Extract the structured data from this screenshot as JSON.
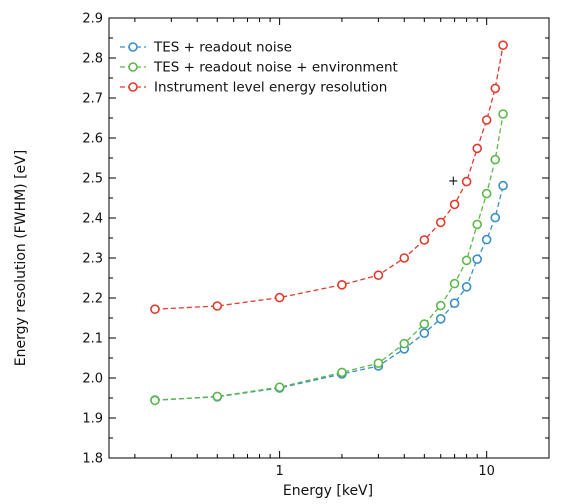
{
  "chart_data": {
    "type": "line",
    "xlabel": "Energy [keV]",
    "ylabel": "Energy resolution (FWHM) [eV]",
    "xscale": "log",
    "xlim": [
      0.15,
      20
    ],
    "ylim": [
      1.8,
      2.9
    ],
    "x_ticks": [
      {
        "value": 1,
        "label": "1"
      },
      {
        "value": 10,
        "label": "10"
      }
    ],
    "y_ticks": [
      1.8,
      1.9,
      2.0,
      2.1,
      2.2,
      2.3,
      2.4,
      2.5,
      2.6,
      2.7,
      2.8,
      2.9
    ],
    "y_tick_labels": [
      "1.8",
      "1.9",
      "2.0",
      "2.1",
      "2.2",
      "2.3",
      "2.4",
      "2.5",
      "2.6",
      "2.7",
      "2.8",
      "2.9"
    ],
    "grid": false,
    "legend_position": "top-left",
    "series": [
      {
        "name": "TES + readout noise",
        "color": "#3a8ec8",
        "x": [
          0.25,
          0.5,
          1,
          2,
          3,
          4,
          5,
          6,
          7,
          8,
          9,
          10,
          11,
          12
        ],
        "y": [
          1.945,
          1.953,
          1.975,
          2.01,
          2.03,
          2.073,
          2.112,
          2.148,
          2.187,
          2.228,
          2.297,
          2.346,
          2.401,
          2.481
        ]
      },
      {
        "name": "TES + readout noise + environment",
        "color": "#5cb84a",
        "x": [
          0.25,
          0.5,
          1,
          2,
          3,
          4,
          5,
          6,
          7,
          8,
          9,
          10,
          11,
          12
        ],
        "y": [
          1.944,
          1.954,
          1.977,
          2.014,
          2.037,
          2.086,
          2.135,
          2.181,
          2.236,
          2.294,
          2.384,
          2.461,
          2.546,
          2.66
        ]
      },
      {
        "name": "Instrument level energy resolution",
        "color": "#e23a2c",
        "x": [
          0.25,
          0.5,
          1,
          2,
          3,
          4,
          5,
          6,
          7,
          8,
          9,
          10,
          11,
          12
        ],
        "y": [
          2.172,
          2.18,
          2.201,
          2.233,
          2.257,
          2.3,
          2.345,
          2.389,
          2.434,
          2.491,
          2.574,
          2.645,
          2.724,
          2.832
        ]
      }
    ],
    "annotations": [
      {
        "text": "+",
        "x": 6.9,
        "y": 2.498
      }
    ]
  }
}
